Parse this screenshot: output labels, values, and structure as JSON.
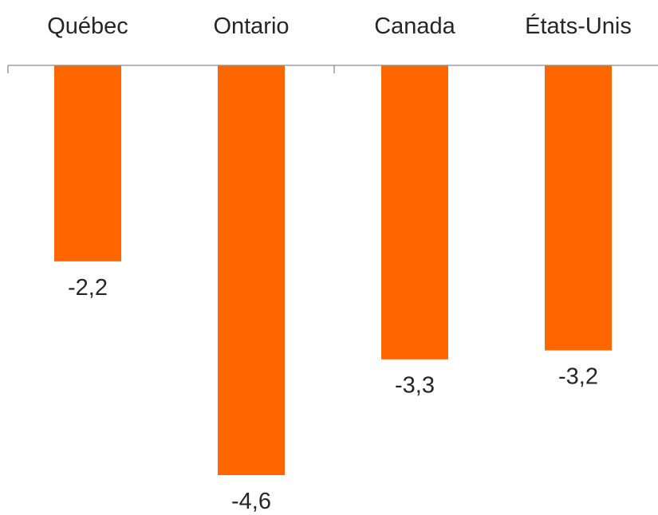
{
  "chart_data": {
    "type": "bar",
    "title": "",
    "xlabel": "",
    "ylabel": "",
    "categories": [
      "Québec",
      "Ontario",
      "Canada",
      "États-Unis"
    ],
    "values": [
      -2.2,
      -4.6,
      -3.3,
      -3.2
    ],
    "value_labels": [
      "-2,2",
      "-4,6",
      "-3,3",
      "-3,2"
    ],
    "ylim": [
      -4.6,
      0
    ],
    "grid": false,
    "legend": "none",
    "bar_color": "#ff6600",
    "axis_color": "#8c8c8c",
    "text_color": "#262626"
  }
}
